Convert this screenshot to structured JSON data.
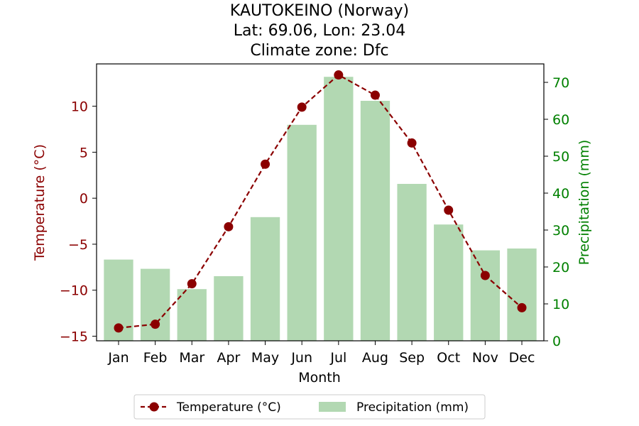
{
  "chart_data": {
    "type": "bar+line",
    "title_lines": [
      "KAUTOKEINO (Norway)",
      "Lat: 69.06, Lon: 23.04",
      "Climate zone: Dfc"
    ],
    "xlabel": "Month",
    "categories": [
      "Jan",
      "Feb",
      "Mar",
      "Apr",
      "May",
      "Jun",
      "Jul",
      "Aug",
      "Sep",
      "Oct",
      "Nov",
      "Dec"
    ],
    "series": [
      {
        "name": "Temperature (°C)",
        "type": "line",
        "axis": "left",
        "color": "#8b0000",
        "marker": "circle",
        "line_style": "dashed",
        "values": [
          -14.1,
          -13.7,
          -9.3,
          -3.1,
          3.7,
          9.9,
          13.4,
          11.2,
          6.0,
          -1.3,
          -8.4,
          -11.9
        ]
      },
      {
        "name": "Precipitation (mm)",
        "type": "bar",
        "axis": "right",
        "color": "#b2d8b2",
        "values": [
          22,
          19.5,
          14,
          17.5,
          33.5,
          58.5,
          71.5,
          65,
          42.5,
          31.5,
          24.5,
          25
        ]
      }
    ],
    "y_left": {
      "label": "Temperature (°C)",
      "color": "#8b0000",
      "ylim": [
        -15.5,
        14.6
      ],
      "ticks": [
        -15,
        -10,
        -5,
        0,
        5,
        10
      ],
      "tick_labels": [
        "−15",
        "−10",
        "−5",
        "0",
        "5",
        "10"
      ]
    },
    "y_right": {
      "label": "Precipitation (mm)",
      "color": "#008000",
      "ylim": [
        0,
        75
      ],
      "ticks": [
        0,
        10,
        20,
        30,
        40,
        50,
        60,
        70
      ],
      "tick_labels": [
        "0",
        "10",
        "20",
        "30",
        "40",
        "50",
        "60",
        "70"
      ]
    },
    "grid": false,
    "legend": {
      "position": "bottom-center",
      "entries": [
        "Temperature (°C)",
        "Precipitation (mm)"
      ]
    }
  }
}
